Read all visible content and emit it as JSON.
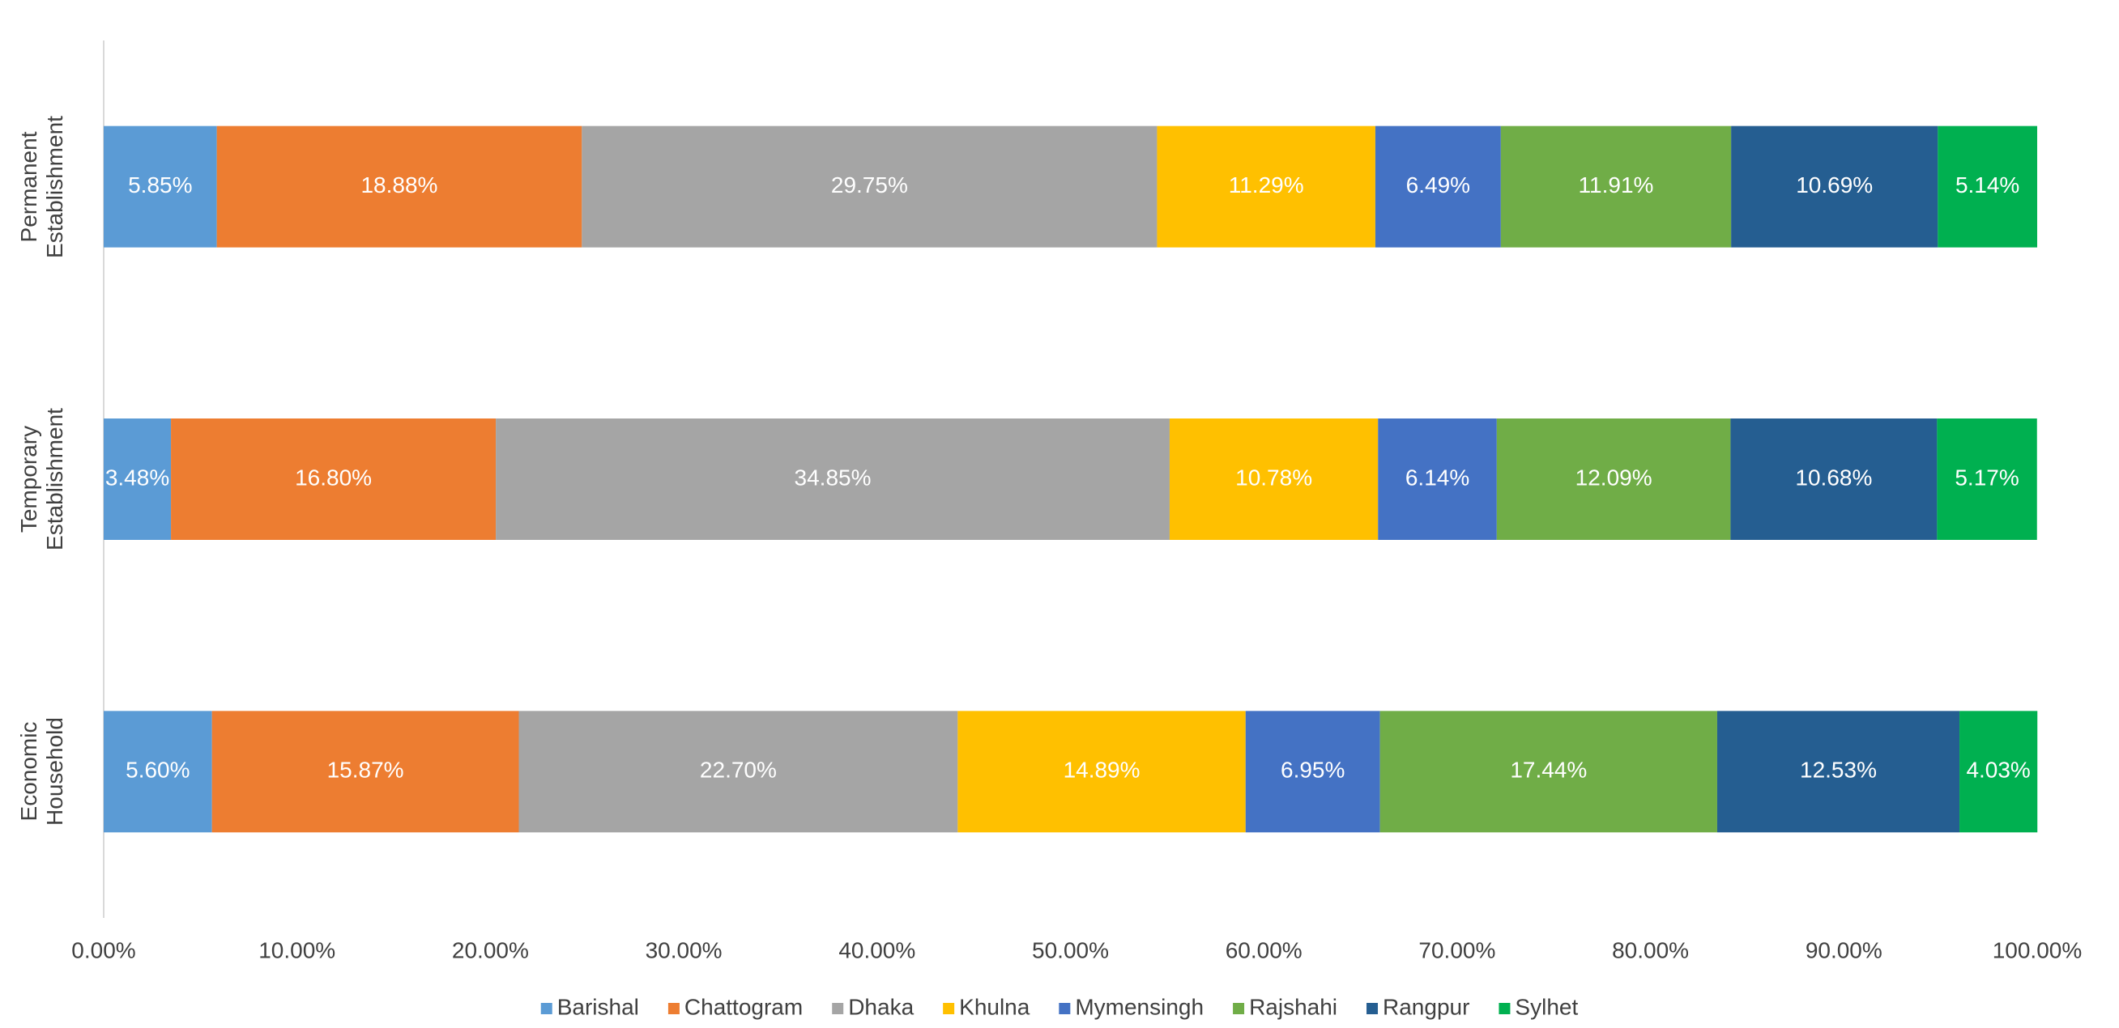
{
  "chart_data": {
    "type": "stacked_bar_horizontal",
    "categories": [
      "Permanent Establishment",
      "Temporary Establishment",
      "Economic Household"
    ],
    "series": [
      {
        "name": "Barishal",
        "color": "#5b9bd5",
        "values": [
          5.85,
          3.48,
          5.6
        ],
        "value_labels": [
          "5.85%",
          "3.48%",
          "5.60%"
        ]
      },
      {
        "name": "Chattogram",
        "color": "#ed7d31",
        "values": [
          18.88,
          16.8,
          15.87
        ],
        "value_labels": [
          "18.88%",
          "16.80%",
          "15.87%"
        ]
      },
      {
        "name": "Dhaka",
        "color": "#a5a5a5",
        "values": [
          29.75,
          34.85,
          22.7
        ],
        "value_labels": [
          "29.75%",
          "34.85%",
          "22.70%"
        ]
      },
      {
        "name": "Khulna",
        "color": "#ffc000",
        "values": [
          11.29,
          10.78,
          14.89
        ],
        "value_labels": [
          "11.29%",
          "10.78%",
          "14.89%"
        ]
      },
      {
        "name": "Mymensingh",
        "color": "#4472c4",
        "values": [
          6.49,
          6.14,
          6.95
        ],
        "value_labels": [
          "6.49%",
          "6.14%",
          "6.95%"
        ]
      },
      {
        "name": "Rajshahi",
        "color": "#70ad47",
        "values": [
          11.91,
          12.09,
          17.44
        ],
        "value_labels": [
          "11.91%",
          "12.09%",
          "17.44%"
        ]
      },
      {
        "name": "Rangpur",
        "color": "#255e91",
        "values": [
          10.69,
          10.68,
          12.53
        ],
        "value_labels": [
          "10.69%",
          "10.68%",
          "12.53%"
        ]
      },
      {
        "name": "Sylhet",
        "color": "#00b050",
        "values": [
          5.14,
          5.17,
          4.03
        ],
        "value_labels": [
          "5.14%",
          "5.17%",
          "4.03%"
        ]
      }
    ],
    "xlim": [
      0,
      100
    ],
    "xticks": [
      {
        "value": 0,
        "label": "0.00%"
      },
      {
        "value": 10,
        "label": "10.00%"
      },
      {
        "value": 20,
        "label": "20.00%"
      },
      {
        "value": 30,
        "label": "30.00%"
      },
      {
        "value": 40,
        "label": "40.00%"
      },
      {
        "value": 50,
        "label": "50.00%"
      },
      {
        "value": 60,
        "label": "60.00%"
      },
      {
        "value": 70,
        "label": "70.00%"
      },
      {
        "value": 80,
        "label": "80.00%"
      },
      {
        "value": 90,
        "label": "90.00%"
      },
      {
        "value": 100,
        "label": "100.00%"
      }
    ],
    "legend": "bottom",
    "grid": false
  }
}
